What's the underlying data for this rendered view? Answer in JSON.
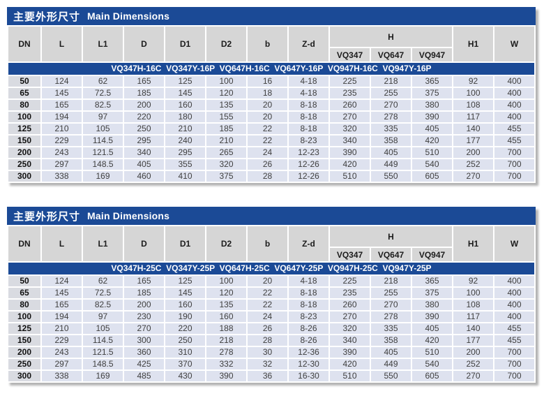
{
  "colors": {
    "header_blue": "#1b4a96",
    "header_gray": "#d6d6d6",
    "dn_column_gray": "#d9dbe1",
    "data_cell_lavender": "#dee2ef"
  },
  "tables": [
    {
      "title_zh": "主要外形尺寸",
      "title_en": "Main Dimensions",
      "col_headers": [
        "DN",
        "L",
        "L1",
        "D",
        "D1",
        "D2",
        "b",
        "Z-d"
      ],
      "h_group_label": "H",
      "h_subcolumns": [
        "VQ347",
        "VQ647",
        "VQ947"
      ],
      "tail_headers": [
        "H1",
        "W"
      ],
      "models_line": "VQ347H-16C  VQ347Y-16P  VQ647H-16C  VQ647Y-16P  VQ947H-16C  VQ947Y-16P",
      "rows": [
        [
          "50",
          "124",
          "62",
          "165",
          "125",
          "100",
          "16",
          "4-18",
          "225",
          "218",
          "365",
          "92",
          "400"
        ],
        [
          "65",
          "145",
          "72.5",
          "185",
          "145",
          "120",
          "18",
          "4-18",
          "235",
          "255",
          "375",
          "100",
          "400"
        ],
        [
          "80",
          "165",
          "82.5",
          "200",
          "160",
          "135",
          "20",
          "8-18",
          "260",
          "270",
          "380",
          "108",
          "400"
        ],
        [
          "100",
          "194",
          "97",
          "220",
          "180",
          "155",
          "20",
          "8-18",
          "270",
          "278",
          "390",
          "117",
          "400"
        ],
        [
          "125",
          "210",
          "105",
          "250",
          "210",
          "185",
          "22",
          "8-18",
          "320",
          "335",
          "405",
          "140",
          "455"
        ],
        [
          "150",
          "229",
          "114.5",
          "295",
          "240",
          "210",
          "22",
          "8-23",
          "340",
          "358",
          "420",
          "177",
          "455"
        ],
        [
          "200",
          "243",
          "121.5",
          "340",
          "295",
          "265",
          "24",
          "12-23",
          "390",
          "405",
          "510",
          "200",
          "700"
        ],
        [
          "250",
          "297",
          "148.5",
          "405",
          "355",
          "320",
          "26",
          "12-26",
          "420",
          "449",
          "540",
          "252",
          "700"
        ],
        [
          "300",
          "338",
          "169",
          "460",
          "410",
          "375",
          "28",
          "12-26",
          "510",
          "550",
          "605",
          "270",
          "700"
        ]
      ]
    },
    {
      "title_zh": "主要外形尺寸",
      "title_en": "Main Dimensions",
      "col_headers": [
        "DN",
        "L",
        "L1",
        "D",
        "D1",
        "D2",
        "b",
        "Z-d"
      ],
      "h_group_label": "H",
      "h_subcolumns": [
        "VQ347",
        "VQ647",
        "VQ947"
      ],
      "tail_headers": [
        "H1",
        "W"
      ],
      "models_line": "VQ347H-25C  VQ347Y-25P  VQ647H-25C  VQ647Y-25P  VQ947H-25C  VQ947Y-25P",
      "rows": [
        [
          "50",
          "124",
          "62",
          "165",
          "125",
          "100",
          "20",
          "4-18",
          "225",
          "218",
          "365",
          "92",
          "400"
        ],
        [
          "65",
          "145",
          "72.5",
          "185",
          "145",
          "120",
          "22",
          "8-18",
          "235",
          "255",
          "375",
          "100",
          "400"
        ],
        [
          "80",
          "165",
          "82.5",
          "200",
          "160",
          "135",
          "22",
          "8-18",
          "260",
          "270",
          "380",
          "108",
          "400"
        ],
        [
          "100",
          "194",
          "97",
          "230",
          "190",
          "160",
          "24",
          "8-23",
          "270",
          "278",
          "390",
          "117",
          "400"
        ],
        [
          "125",
          "210",
          "105",
          "270",
          "220",
          "188",
          "26",
          "8-26",
          "320",
          "335",
          "405",
          "140",
          "455"
        ],
        [
          "150",
          "229",
          "114.5",
          "300",
          "250",
          "218",
          "28",
          "8-26",
          "340",
          "358",
          "420",
          "177",
          "455"
        ],
        [
          "200",
          "243",
          "121.5",
          "360",
          "310",
          "278",
          "30",
          "12-36",
          "390",
          "405",
          "510",
          "200",
          "700"
        ],
        [
          "250",
          "297",
          "148.5",
          "425",
          "370",
          "332",
          "32",
          "12-30",
          "420",
          "449",
          "540",
          "252",
          "700"
        ],
        [
          "300",
          "338",
          "169",
          "485",
          "430",
          "390",
          "36",
          "16-30",
          "510",
          "550",
          "605",
          "270",
          "700"
        ]
      ]
    }
  ]
}
